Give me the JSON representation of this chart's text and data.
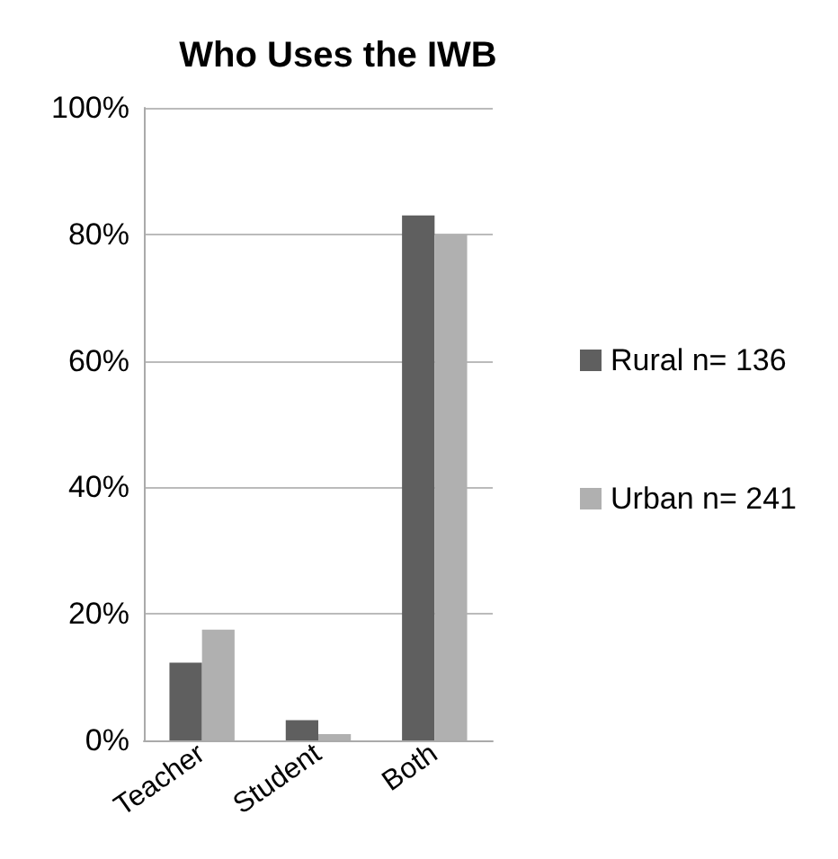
{
  "chart_data": {
    "type": "bar",
    "title": "Who Uses the IWB",
    "categories": [
      "Teacher",
      "Student",
      "Both"
    ],
    "series": [
      {
        "name": "Rural n= 136",
        "color": "#5f5f5f",
        "values": [
          12.3,
          3.2,
          83
        ]
      },
      {
        "name": "Urban n= 241",
        "color": "#b0b0b0",
        "values": [
          17.5,
          1,
          80
        ]
      }
    ],
    "ylim": [
      0,
      100
    ],
    "yticks": [
      {
        "value": 0,
        "label": "0%"
      },
      {
        "value": 20,
        "label": "20%"
      },
      {
        "value": 40,
        "label": "40%"
      },
      {
        "value": 60,
        "label": "60%"
      },
      {
        "value": 80,
        "label": "80%"
      },
      {
        "value": 100,
        "label": "100%"
      }
    ],
    "grid": "y",
    "legend": "right"
  }
}
